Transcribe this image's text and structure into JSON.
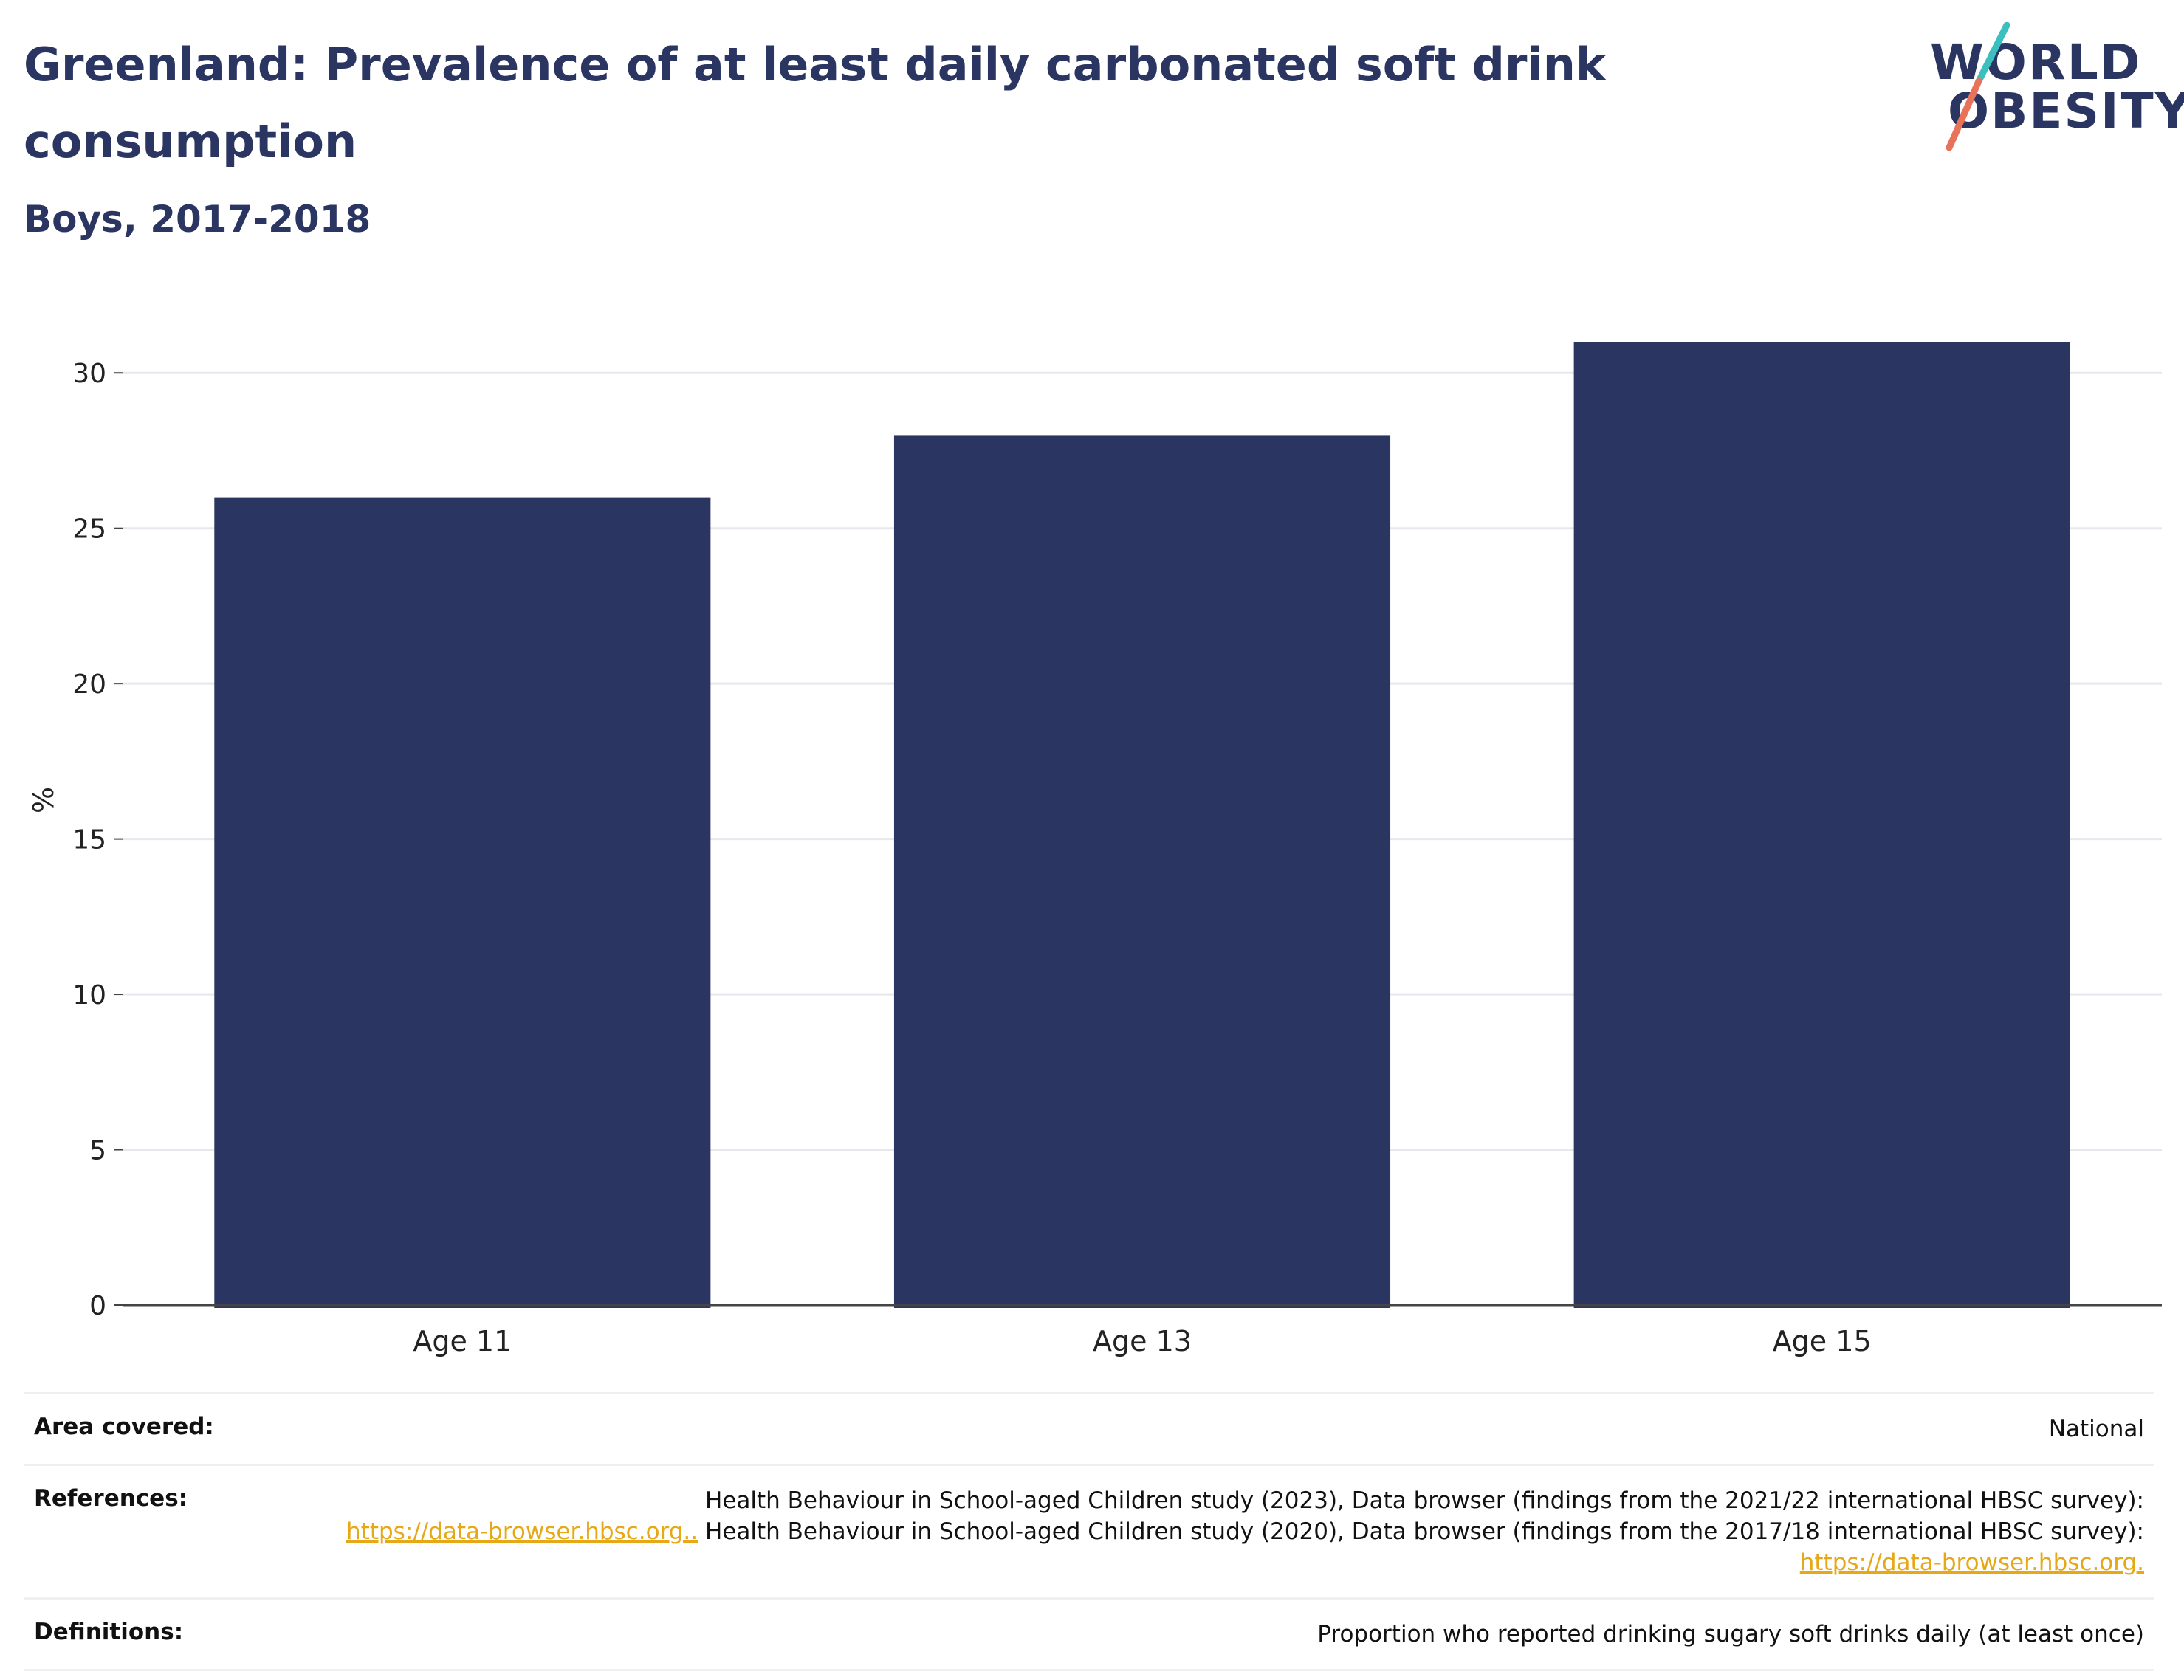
{
  "header": {
    "title": "Greenland: Prevalence of at least daily carbonated soft drink consumption",
    "subtitle": "Boys, 2017-2018"
  },
  "logo": {
    "line1": "WORLD",
    "line2": "OBESITY",
    "colors": {
      "text": "#2a3562",
      "slash_top": "#3bbfbf",
      "slash_bottom": "#e8735a"
    }
  },
  "chart_data": {
    "type": "bar",
    "title": "Greenland: Prevalence of at least daily carbonated soft drink consumption",
    "subtitle": "Boys, 2017-2018",
    "xlabel": "",
    "ylabel": "%",
    "categories": [
      "Age 11",
      "Age 13",
      "Age 15"
    ],
    "values": [
      26,
      28,
      31
    ],
    "ylim": [
      0,
      32.5
    ],
    "yticks": [
      0,
      5,
      10,
      15,
      20,
      25,
      30
    ],
    "grid": true,
    "legend": "none",
    "bar_color": "#2a3562"
  },
  "info": {
    "area_label": "Area covered:",
    "area_value": "National",
    "references_label": "References:",
    "references_text1": "Health Behaviour in School-aged Children study (2023), Data browser (findings from the 2021/22 international HBSC survey):",
    "references_link1": "https://data-browser.hbsc.org..",
    "references_text2": "Health Behaviour in School-aged Children study (2020), Data browser (findings from the 2017/18 international HBSC survey):",
    "references_link2": "https://data-browser.hbsc.org.",
    "definitions_label": "Definitions:",
    "definitions_value": "Proportion who reported drinking sugary soft drinks daily (at least once)"
  }
}
